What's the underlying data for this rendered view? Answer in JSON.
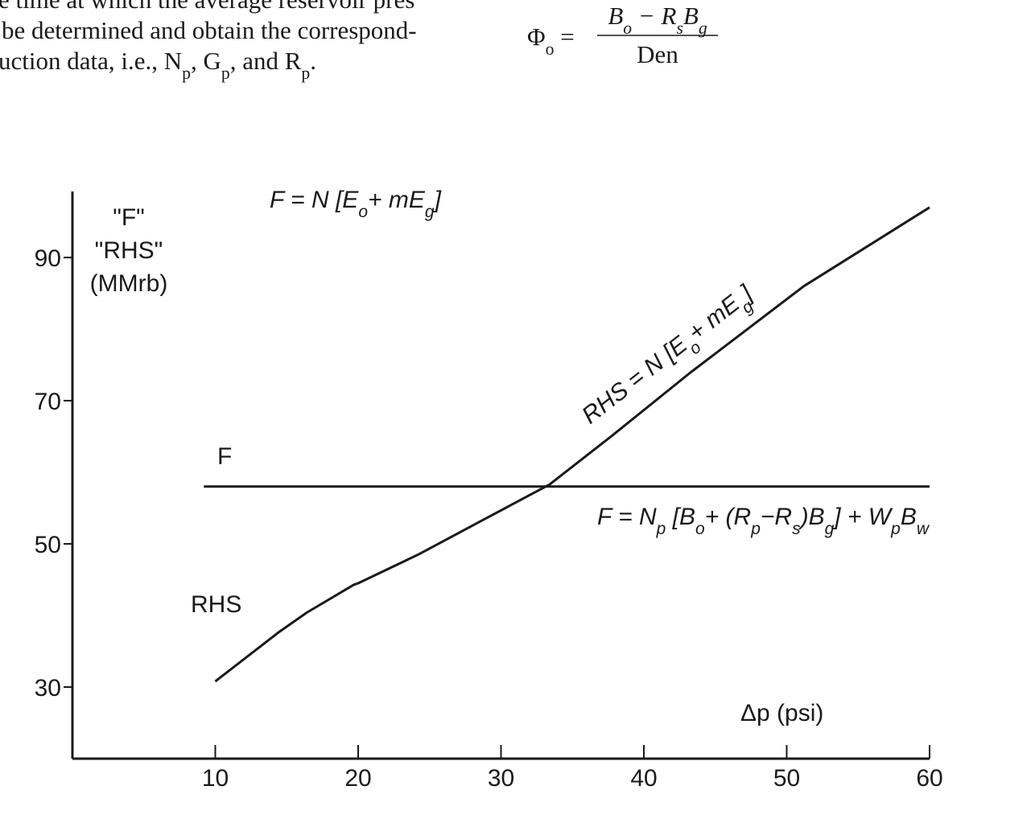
{
  "page_text": {
    "lines": [
      [
        "e time at which the average reservoir pres"
      ],
      [
        "be determined and obtain the correspond-"
      ],
      [
        "uction data, i.e., N",
        {
          "sub": "p"
        },
        ", G",
        {
          "sub": "p"
        },
        ", and R",
        {
          "sub": "p"
        },
        "."
      ]
    ],
    "formula": {
      "lhs": [
        "Φ",
        {
          "sub": "o"
        },
        " ="
      ],
      "numerator": [
        "B",
        {
          "sub": "o"
        },
        " − R",
        {
          "sub": "s"
        },
        "B",
        {
          "sub": "g"
        }
      ],
      "denominator": [
        "Den"
      ]
    }
  },
  "chart_data": {
    "type": "line",
    "y_label": [
      "\"F\"",
      "\"RHS\"",
      "(MMrb)"
    ],
    "x_label": "Δp (psi)",
    "annotations": {
      "top": [
        "F = N [E",
        {
          "sub": "o"
        },
        "+ mE",
        {
          "sub": "g"
        },
        "]"
      ],
      "rhs": [
        "RHS = N [E",
        {
          "sub": "o"
        },
        "+ mE",
        {
          "sub": "g"
        },
        "]"
      ],
      "f": [
        "F = N",
        {
          "sub": "p"
        },
        " [B",
        {
          "sub": "o"
        },
        "+ (R",
        {
          "sub": "p"
        },
        "−R",
        {
          "sub": "s"
        },
        ")B",
        {
          "sub": "g"
        },
        "] + W",
        {
          "sub": "p"
        },
        "B",
        {
          "sub": "w"
        }
      ]
    },
    "series": [
      {
        "name": "F",
        "color": "#1a1a1a",
        "x": [
          9.2,
          60
        ],
        "values": [
          58,
          58
        ]
      },
      {
        "name": "RHS",
        "color": "#1a1a1a",
        "x": [
          10,
          14.4,
          16.4,
          19.7,
          20,
          24.2,
          28.7,
          33.4,
          37.7,
          43.3,
          51.2,
          60
        ],
        "values": [
          30.8,
          37.6,
          40.4,
          44.3,
          44.5,
          48.5,
          53.3,
          58.3,
          65,
          74,
          86,
          97
        ]
      }
    ],
    "xlim": [
      0,
      60
    ],
    "ylim": [
      20,
      99
    ],
    "xticks": [
      10,
      20,
      30,
      40,
      50,
      60
    ],
    "yticks": [
      30,
      50,
      70,
      90
    ]
  }
}
